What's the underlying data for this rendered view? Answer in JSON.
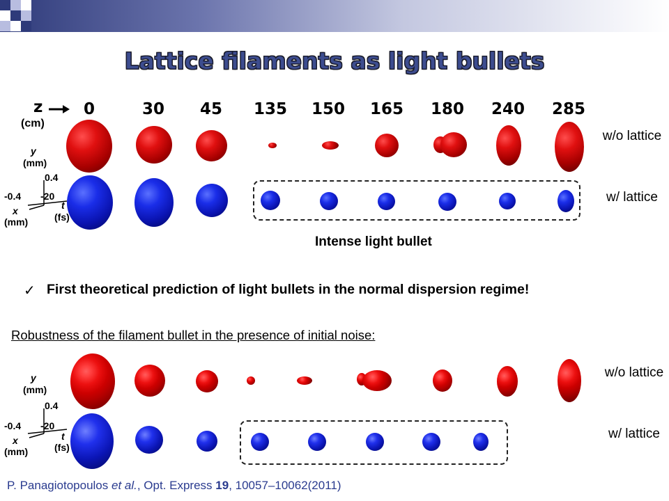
{
  "slide": {
    "title": "Lattice filaments as light bullets"
  },
  "panel_top": {
    "z_axis_symbol": "z",
    "z_unit": "(cm)",
    "z_positions": [
      "0",
      "30",
      "45",
      "135",
      "150",
      "165",
      "180",
      "240",
      "285"
    ],
    "y_axis_label": "y",
    "y_unit": "(mm)",
    "y_tick": "0.4",
    "x_axis_label": "x",
    "x_unit": "(mm)",
    "x_tick": "-0.4",
    "t_axis_label": "t",
    "t_unit": "(fs)",
    "t_tick": "-20",
    "row_without": "w/o lattice",
    "row_with": "w/ lattice",
    "box_caption": "Intense light bullet"
  },
  "claim": {
    "checkmark": "✓",
    "text": "First theoretical prediction of  light bullets in the normal dispersion regime!"
  },
  "panel_bottom": {
    "heading": "Robustness of the filament bullet in the presence of initial noise:",
    "y_axis_label": "y",
    "y_unit": "(mm)",
    "y_tick": "0.4",
    "x_axis_label": "x",
    "x_unit": "(mm)",
    "x_tick": "-0.4",
    "t_axis_label": "t",
    "t_unit": "(fs)",
    "t_tick": "-20",
    "row_without": "w/o lattice",
    "row_with": "w/ lattice"
  },
  "citation": {
    "authors": "P. Panagiotopoulos ",
    "etal": "et al.",
    "journal": ", Opt. Express ",
    "volume": "19",
    "pages": ", 10057–10062(2011)"
  },
  "colors": {
    "title": "#3d4d8f",
    "without_lattice": "#cc0000",
    "with_lattice": "#1020d0",
    "citation": "#2a3b8f"
  }
}
